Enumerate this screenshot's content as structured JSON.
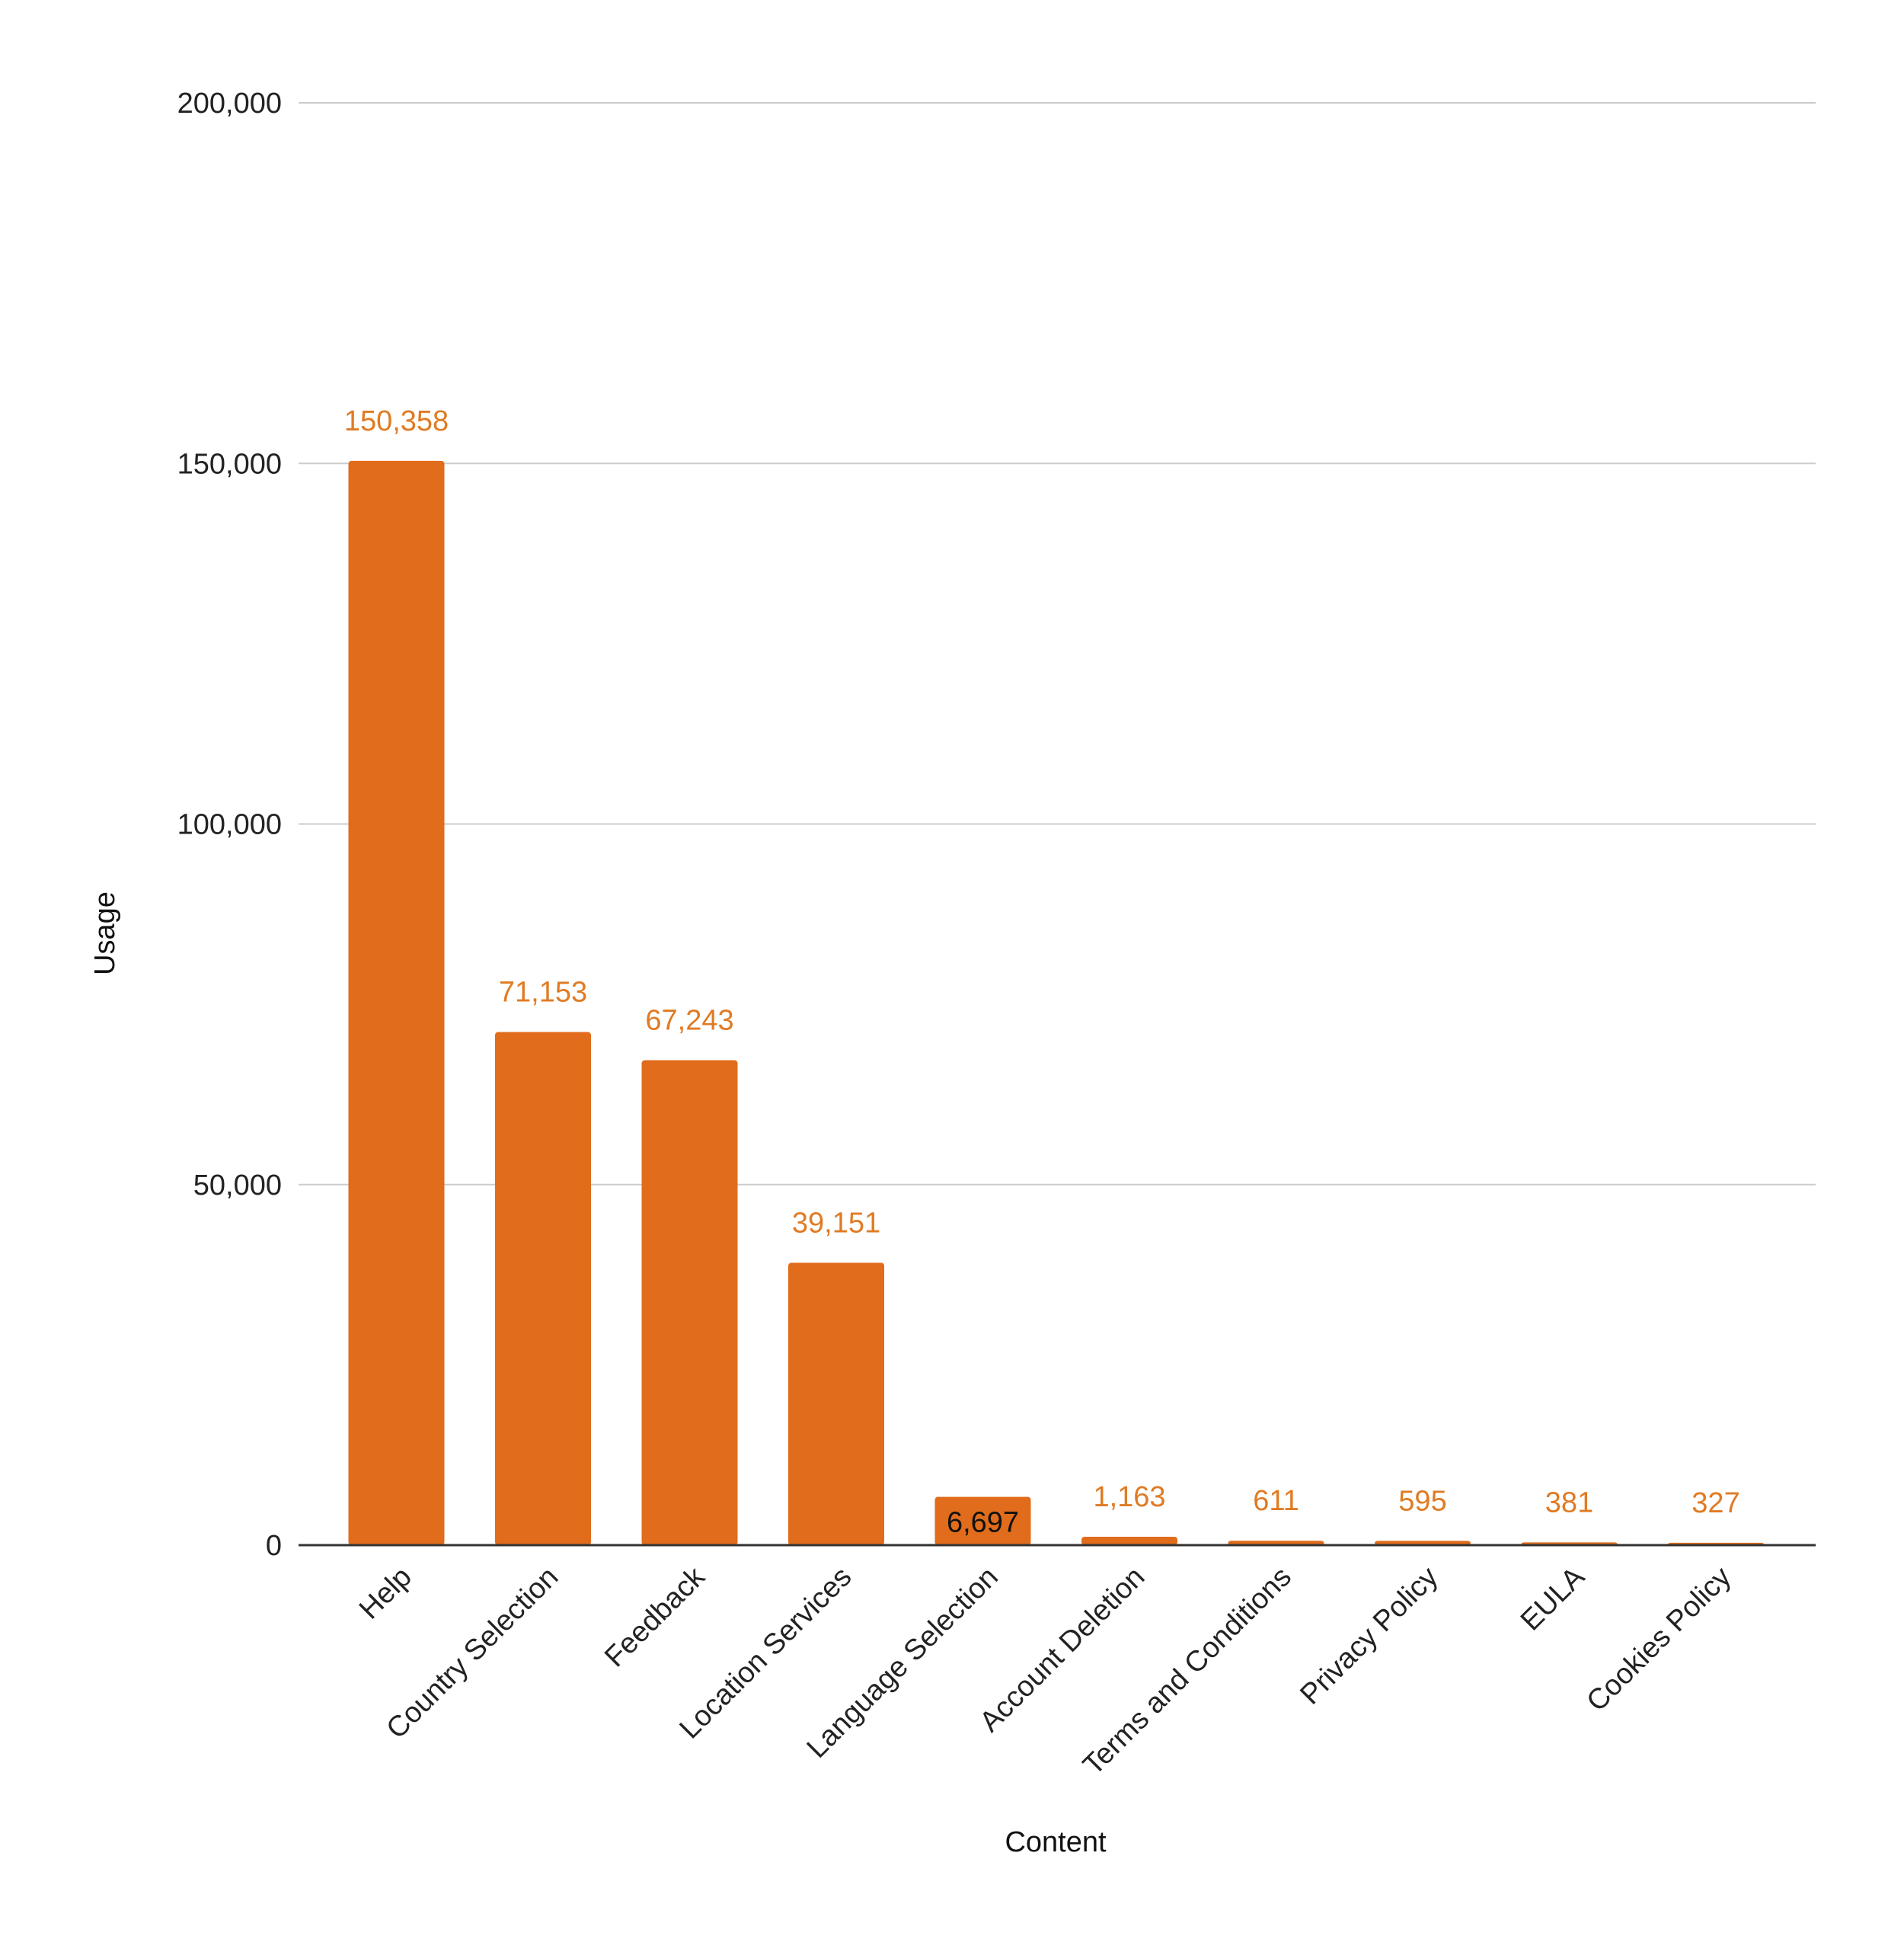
{
  "chart_data": {
    "type": "bar",
    "title": "",
    "xlabel": "Content",
    "ylabel": "Usage",
    "categories": [
      "Help",
      "Country Selection",
      "Feedback",
      "Location Services",
      "Language Selection",
      "Account Deletion",
      "Terms and Conditions",
      "Privacy Policy",
      "EULA",
      "Cookies Policy"
    ],
    "values": [
      150358,
      71153,
      67243,
      39151,
      6697,
      1163,
      611,
      595,
      381,
      327
    ],
    "data_labels": [
      "150,358",
      "71,153",
      "67,243",
      "39,151",
      "6,697",
      "1,163",
      "611",
      "595",
      "381",
      "327"
    ],
    "ylim": [
      0,
      200000
    ],
    "yticks": [
      0,
      50000,
      100000,
      150000,
      200000
    ],
    "ytick_labels": [
      "0",
      "50,000",
      "100,000",
      "150,000",
      "200,000"
    ],
    "grid": true,
    "legend": "none",
    "colors": {
      "bar": "#E06C1C",
      "data_label": "#E07B24",
      "data_label_inside": "#111111",
      "gridline": "#CCCCCC",
      "baseline": "#333333"
    }
  }
}
